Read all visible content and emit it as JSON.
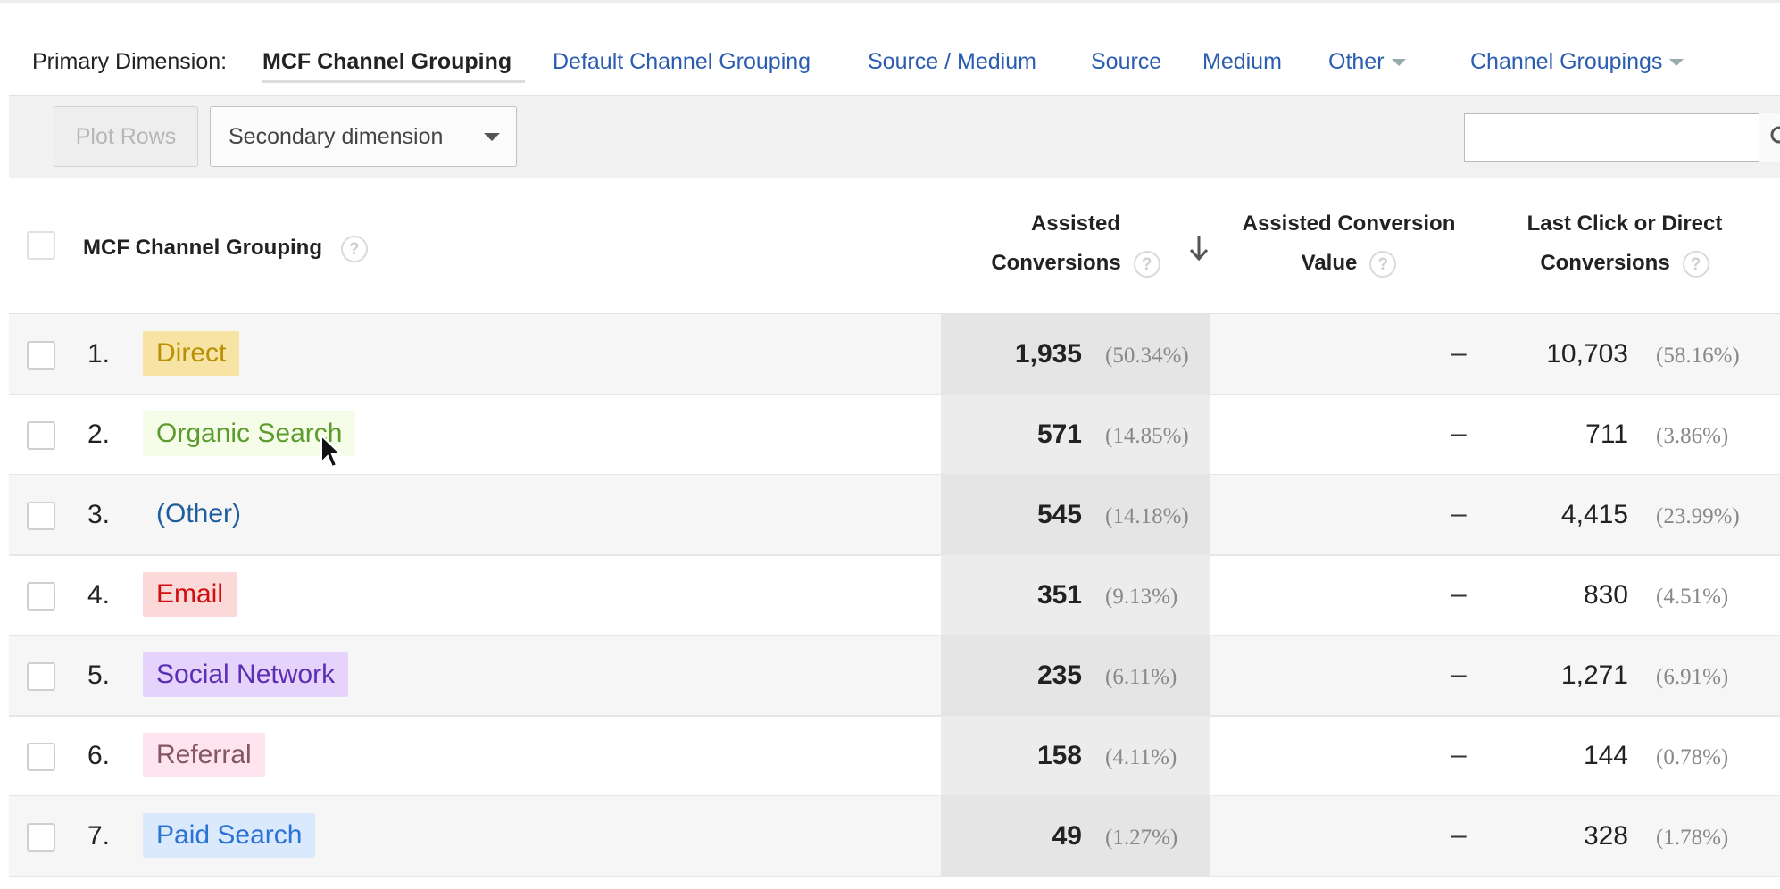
{
  "primary_dimension": {
    "label": "Primary Dimension:",
    "current": "MCF Channel Grouping",
    "links": [
      "Default Channel Grouping",
      "Source / Medium",
      "Source",
      "Medium",
      "Other",
      "Channel Groupings"
    ]
  },
  "toolbar": {
    "plot_rows": "Plot Rows",
    "secondary_dimension": "Secondary dimension",
    "search_value": ""
  },
  "table": {
    "headers": {
      "dimension": "MCF Channel Grouping",
      "assisted_line1": "Assisted",
      "assisted_line2": "Conversions",
      "value_line1": "Assisted Conversion",
      "value_line2": "Value",
      "last_line1": "Last Click or Direct",
      "last_line2": "Conversions",
      "help": "?"
    },
    "sorted_by": "Assisted Conversions",
    "rows": [
      {
        "index": "1.",
        "channel": "Direct",
        "assisted": "1,935",
        "assisted_pct": "(50.34%)",
        "value": "–",
        "last": "10,703",
        "last_pct": "(58.16%)"
      },
      {
        "index": "2.",
        "channel": "Organic Search",
        "assisted": "571",
        "assisted_pct": "(14.85%)",
        "value": "–",
        "last": "711",
        "last_pct": "(3.86%)"
      },
      {
        "index": "3.",
        "channel": "(Other)",
        "assisted": "545",
        "assisted_pct": "(14.18%)",
        "value": "–",
        "last": "4,415",
        "last_pct": "(23.99%)"
      },
      {
        "index": "4.",
        "channel": "Email",
        "assisted": "351",
        "assisted_pct": "(9.13%)",
        "value": "–",
        "last": "830",
        "last_pct": "(4.51%)"
      },
      {
        "index": "5.",
        "channel": "Social Network",
        "assisted": "235",
        "assisted_pct": "(6.11%)",
        "value": "–",
        "last": "1,271",
        "last_pct": "(6.91%)"
      },
      {
        "index": "6.",
        "channel": "Referral",
        "assisted": "158",
        "assisted_pct": "(4.11%)",
        "value": "–",
        "last": "144",
        "last_pct": "(0.78%)"
      },
      {
        "index": "7.",
        "channel": "Paid Search",
        "assisted": "49",
        "assisted_pct": "(1.27%)",
        "value": "–",
        "last": "328",
        "last_pct": "(1.78%)"
      }
    ]
  },
  "channel_colors": {
    "Direct": {
      "bg": "#f7e4a4",
      "fg": "#b98f00"
    },
    "Organic Search": {
      "bg": "#f5fde9",
      "fg": "#5c9c2e"
    },
    "(Other)": {
      "bg": "transparent",
      "fg": "#1f5e9c"
    },
    "Email": {
      "bg": "#fbd9d9",
      "fg": "#d01010"
    },
    "Social Network": {
      "bg": "#e5d3fb",
      "fg": "#5a2fb3"
    },
    "Referral": {
      "bg": "#fde4ef",
      "fg": "#845563"
    },
    "Paid Search": {
      "bg": "#dbe9fc",
      "fg": "#2a72d6"
    }
  }
}
